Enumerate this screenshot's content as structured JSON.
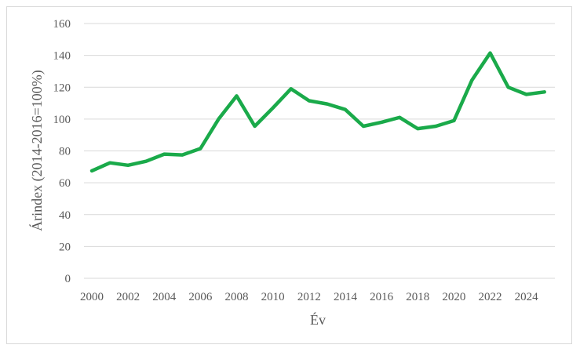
{
  "chart_data": {
    "type": "line",
    "xlabel": "Év",
    "ylabel": "Árindex (2014-2016=100%)",
    "xlim": [
      2000,
      2025
    ],
    "ylim": [
      0,
      160
    ],
    "yticks": [
      0,
      20,
      40,
      60,
      80,
      100,
      120,
      140,
      160
    ],
    "xticks": [
      2000,
      2002,
      2004,
      2006,
      2008,
      2010,
      2012,
      2014,
      2016,
      2018,
      2020,
      2022,
      2024
    ],
    "grid": true,
    "line_color": "#1aaa4a",
    "series": [
      {
        "x": [
          2000,
          2001,
          2002,
          2003,
          2004,
          2005,
          2006,
          2007,
          2008,
          2009,
          2010,
          2011,
          2012,
          2013,
          2014,
          2015,
          2016,
          2017,
          2018,
          2019,
          2020,
          2021,
          2022,
          2023,
          2024,
          2025
        ],
        "y": [
          67.5,
          72.5,
          71,
          73.5,
          78,
          77.5,
          81.5,
          100,
          114.5,
          95.5,
          107,
          119,
          111.5,
          109.5,
          106,
          95.5,
          98,
          101,
          94,
          95.5,
          99,
          124.5,
          141.5,
          120,
          115.5,
          117
        ]
      }
    ]
  }
}
